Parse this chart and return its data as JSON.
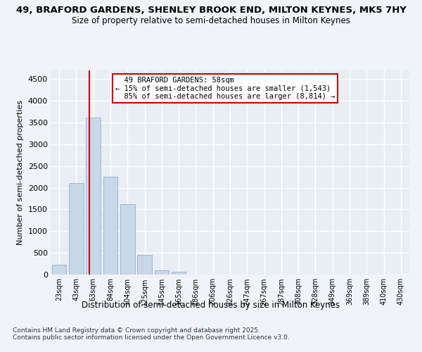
{
  "title_line1": "49, BRAFORD GARDENS, SHENLEY BROOK END, MILTON KEYNES, MK5 7HY",
  "title_line2": "Size of property relative to semi-detached houses in Milton Keynes",
  "xlabel": "Distribution of semi-detached houses by size in Milton Keynes",
  "ylabel": "Number of semi-detached properties",
  "footnote": "Contains HM Land Registry data © Crown copyright and database right 2025.\nContains public sector information licensed under the Open Government Licence v3.0.",
  "bin_labels": [
    "23sqm",
    "43sqm",
    "63sqm",
    "84sqm",
    "104sqm",
    "125sqm",
    "145sqm",
    "165sqm",
    "186sqm",
    "206sqm",
    "226sqm",
    "247sqm",
    "267sqm",
    "287sqm",
    "308sqm",
    "328sqm",
    "349sqm",
    "369sqm",
    "389sqm",
    "410sqm",
    "430sqm"
  ],
  "bar_values": [
    230,
    2100,
    3620,
    2250,
    1620,
    450,
    100,
    60,
    0,
    0,
    0,
    0,
    0,
    0,
    0,
    0,
    0,
    0,
    0,
    0,
    0
  ],
  "bar_color": "#c8d8e8",
  "bar_edge_color": "#a0b8d0",
  "property_label": "49 BRAFORD GARDENS: 58sqm",
  "pct_smaller": 15,
  "pct_larger": 85,
  "count_smaller": 1543,
  "count_larger": 8814,
  "vline_color": "#cc0000",
  "annotation_box_edge": "#cc0000",
  "ylim": [
    0,
    4700
  ],
  "yticks": [
    0,
    500,
    1000,
    1500,
    2000,
    2500,
    3000,
    3500,
    4000,
    4500
  ],
  "background_color": "#f0f4f8",
  "plot_bg_color": "#e8eef4",
  "grid_color": "#ffffff"
}
